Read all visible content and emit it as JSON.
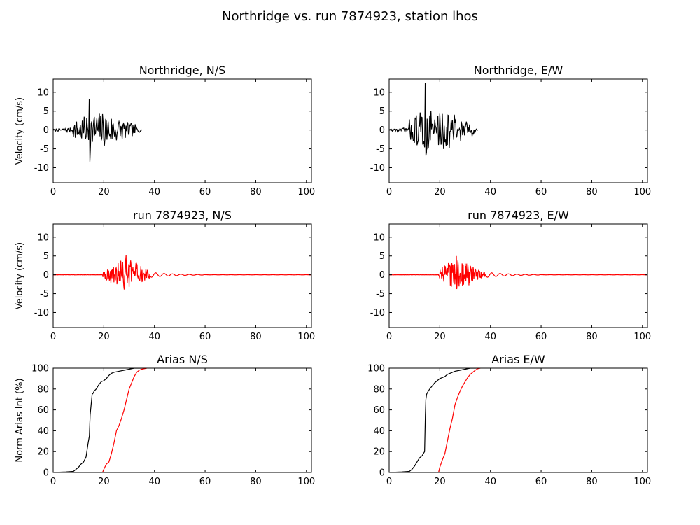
{
  "figure": {
    "title": "Northridge vs. run 7874923, station lhos"
  },
  "chart_data": [
    {
      "type": "line",
      "id": "ns-vel-obs",
      "title": "Northridge, N/S",
      "xlabel": "",
      "ylabel": "Velocity (cm/s)",
      "xlim": [
        0,
        102
      ],
      "ylim": [
        -14,
        13.5
      ],
      "xticks": [
        0,
        20,
        40,
        60,
        80,
        100
      ],
      "yticks": [
        10,
        5,
        0,
        -5,
        -10
      ],
      "series": [
        {
          "color": "#000000",
          "duration": 35,
          "onset": 8,
          "peak_t": 14.4,
          "amplitude": 8.3,
          "x_points": [
            14.2,
            14.5
          ],
          "y_points": [
            8.2,
            -8.4
          ]
        }
      ]
    },
    {
      "type": "line",
      "id": "ew-vel-obs",
      "title": "Northridge, E/W",
      "xlabel": "",
      "ylabel": "",
      "xlim": [
        0,
        102
      ],
      "ylim": [
        -14,
        13.5
      ],
      "xticks": [
        0,
        20,
        40,
        60,
        80,
        100
      ],
      "yticks": [
        10,
        5,
        0,
        -5,
        -10
      ],
      "series": [
        {
          "color": "#000000",
          "duration": 35,
          "onset": 8,
          "peak_t": 14.3,
          "amplitude": 12.5,
          "x_points": [
            14.3,
            14.6
          ],
          "y_points": [
            12.5,
            -6.8
          ]
        }
      ]
    },
    {
      "type": "line",
      "id": "ns-vel-sim",
      "title": "run 7874923, N/S",
      "xlabel": "",
      "ylabel": "Velocity (cm/s)",
      "xlim": [
        0,
        102
      ],
      "ylim": [
        -14,
        13.5
      ],
      "xticks": [
        0,
        20,
        40,
        60,
        80,
        100
      ],
      "yticks": [
        10,
        5,
        0,
        -5,
        -10
      ],
      "series": [
        {
          "color": "#ff0000",
          "duration": 102,
          "onset": 19.5,
          "peak_t": 29,
          "amplitude": 5.2,
          "x_points": [
            28.8
          ],
          "y_points": [
            5.2
          ]
        }
      ]
    },
    {
      "type": "line",
      "id": "ew-vel-sim",
      "title": "run 7874923, E/W",
      "xlabel": "",
      "ylabel": "",
      "xlim": [
        0,
        102
      ],
      "ylim": [
        -14,
        13.5
      ],
      "xticks": [
        0,
        20,
        40,
        60,
        80,
        100
      ],
      "yticks": [
        10,
        5,
        0,
        -5,
        -10
      ],
      "series": [
        {
          "color": "#ff0000",
          "duration": 102,
          "onset": 19.5,
          "peak_t": 27,
          "amplitude": 5.0,
          "x_points": [
            26.5
          ],
          "y_points": [
            5.0
          ]
        }
      ]
    },
    {
      "type": "line",
      "id": "ns-arias",
      "title": "Arias N/S",
      "xlabel": "",
      "ylabel": "Norm Arias Int (%)",
      "xlim": [
        0,
        102
      ],
      "ylim": [
        0,
        100
      ],
      "xticks": [
        0,
        20,
        40,
        60,
        80,
        100
      ],
      "yticks": [
        100,
        80,
        60,
        40,
        20,
        0
      ],
      "series": [
        {
          "color": "#000000",
          "x": [
            0,
            5,
            8,
            9,
            10,
            11,
            12,
            13,
            13.8,
            14.3,
            14.6,
            15,
            15.4,
            15.8,
            16.2,
            17,
            18,
            19,
            20,
            21,
            22,
            23,
            24,
            25,
            26,
            28,
            30,
            32,
            35
          ],
          "y": [
            0,
            0.5,
            1,
            3,
            5,
            8,
            10,
            15,
            28,
            35,
            55,
            65,
            75,
            76,
            78,
            80,
            84,
            87,
            88,
            90,
            93,
            95,
            96,
            96.5,
            97,
            98,
            99,
            100,
            100
          ]
        },
        {
          "color": "#ff0000",
          "x": [
            0,
            19.5,
            20,
            21,
            22,
            23,
            24,
            25,
            26,
            27,
            28,
            29,
            30,
            31,
            32,
            33,
            34,
            35,
            36,
            37
          ],
          "y": [
            0,
            0,
            3,
            8,
            10,
            18,
            28,
            40,
            45,
            52,
            60,
            70,
            80,
            86,
            92,
            96,
            98,
            99,
            99.5,
            100
          ]
        }
      ]
    },
    {
      "type": "line",
      "id": "ew-arias",
      "title": "Arias E/W",
      "xlabel": "",
      "ylabel": "",
      "xlim": [
        0,
        102
      ],
      "ylim": [
        0,
        100
      ],
      "xticks": [
        0,
        20,
        40,
        60,
        80,
        100
      ],
      "yticks": [
        100,
        80,
        60,
        40,
        20,
        0
      ],
      "series": [
        {
          "color": "#000000",
          "x": [
            0,
            5,
            8,
            9,
            10,
            11,
            12,
            13,
            14,
            14.3,
            14.5,
            14.8,
            15.2,
            16,
            17,
            18,
            19,
            20,
            21,
            22,
            23,
            24,
            25,
            26,
            28,
            30,
            32,
            35
          ],
          "y": [
            0,
            0.5,
            1,
            3,
            6,
            10,
            14,
            16,
            20,
            55,
            70,
            75,
            77,
            80,
            83,
            86,
            88,
            90,
            91,
            92,
            94,
            95,
            96,
            97,
            98,
            99,
            100,
            100
          ]
        },
        {
          "color": "#ff0000",
          "x": [
            0,
            19.5,
            20,
            21,
            22,
            23,
            24,
            25,
            26,
            27,
            28,
            29,
            30,
            31,
            32,
            33,
            34,
            35,
            36
          ],
          "y": [
            0,
            0,
            5,
            12,
            18,
            30,
            42,
            52,
            65,
            72,
            78,
            83,
            87,
            91,
            94,
            96,
            98,
            99.5,
            100
          ]
        }
      ]
    }
  ]
}
